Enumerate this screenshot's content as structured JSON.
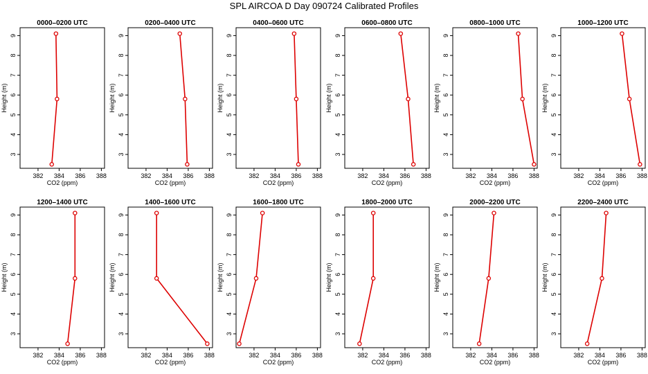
{
  "title": "SPL AIRCOA D  Day 090724  Calibrated Profiles",
  "colors": {
    "line": "#dd0000",
    "axis": "#000000"
  },
  "chart_data": [
    {
      "type": "line",
      "title": "0000–0200 UTC",
      "xlabel": "CO2 (ppm)",
      "ylabel": "Height (m)",
      "xlim": [
        380.3,
        388.3
      ],
      "ylim": [
        2.3,
        9.4
      ],
      "xticks": [
        382,
        384,
        386,
        388
      ],
      "yticks": [
        3,
        4,
        5,
        6,
        7,
        8,
        9
      ],
      "x": [
        383.3,
        383.8,
        383.7
      ],
      "y": [
        2.5,
        5.8,
        9.1
      ]
    },
    {
      "type": "line",
      "title": "0200–0400 UTC",
      "xlabel": "CO2 (ppm)",
      "ylabel": "Height (m)",
      "xlim": [
        380.3,
        388.3
      ],
      "ylim": [
        2.3,
        9.4
      ],
      "xticks": [
        382,
        384,
        386,
        388
      ],
      "yticks": [
        3,
        4,
        5,
        6,
        7,
        8,
        9
      ],
      "x": [
        385.9,
        385.7,
        385.2
      ],
      "y": [
        2.5,
        5.8,
        9.1
      ]
    },
    {
      "type": "line",
      "title": "0400–0600 UTC",
      "xlabel": "CO2 (ppm)",
      "ylabel": "Height (m)",
      "xlim": [
        380.3,
        388.3
      ],
      "ylim": [
        2.3,
        9.4
      ],
      "xticks": [
        382,
        384,
        386,
        388
      ],
      "yticks": [
        3,
        4,
        5,
        6,
        7,
        8,
        9
      ],
      "x": [
        386.2,
        386.0,
        385.8
      ],
      "y": [
        2.5,
        5.8,
        9.1
      ]
    },
    {
      "type": "line",
      "title": "0600–0800 UTC",
      "xlabel": "CO2 (ppm)",
      "ylabel": "Height (m)",
      "xlim": [
        380.3,
        388.3
      ],
      "ylim": [
        2.3,
        9.4
      ],
      "xticks": [
        382,
        384,
        386,
        388
      ],
      "yticks": [
        3,
        4,
        5,
        6,
        7,
        8,
        9
      ],
      "x": [
        386.8,
        386.3,
        385.6
      ],
      "y": [
        2.5,
        5.8,
        9.1
      ]
    },
    {
      "type": "line",
      "title": "0800–1000 UTC",
      "xlabel": "CO2 (ppm)",
      "ylabel": "Height (m)",
      "xlim": [
        380.3,
        388.3
      ],
      "ylim": [
        2.3,
        9.4
      ],
      "xticks": [
        382,
        384,
        386,
        388
      ],
      "yticks": [
        3,
        4,
        5,
        6,
        7,
        8,
        9
      ],
      "x": [
        388.0,
        386.9,
        386.5
      ],
      "y": [
        2.5,
        5.8,
        9.1
      ]
    },
    {
      "type": "line",
      "title": "1000–1200 UTC",
      "xlabel": "CO2 (ppm)",
      "ylabel": "Height (m)",
      "xlim": [
        380.3,
        388.3
      ],
      "ylim": [
        2.3,
        9.4
      ],
      "xticks": [
        382,
        384,
        386,
        388
      ],
      "yticks": [
        3,
        4,
        5,
        6,
        7,
        8,
        9
      ],
      "x": [
        387.8,
        386.8,
        386.1
      ],
      "y": [
        2.5,
        5.8,
        9.1
      ]
    },
    {
      "type": "line",
      "title": "1200–1400 UTC",
      "xlabel": "CO2 (ppm)",
      "ylabel": "Height (m)",
      "xlim": [
        380.3,
        388.3
      ],
      "ylim": [
        2.3,
        9.4
      ],
      "xticks": [
        382,
        384,
        386,
        388
      ],
      "yticks": [
        3,
        4,
        5,
        6,
        7,
        8,
        9
      ],
      "x": [
        384.8,
        385.5,
        385.5
      ],
      "y": [
        2.5,
        5.8,
        9.1
      ]
    },
    {
      "type": "line",
      "title": "1400–1600 UTC",
      "xlabel": "CO2 (ppm)",
      "ylabel": "Height (m)",
      "xlim": [
        380.3,
        388.3
      ],
      "ylim": [
        2.3,
        9.4
      ],
      "xticks": [
        382,
        384,
        386,
        388
      ],
      "yticks": [
        3,
        4,
        5,
        6,
        7,
        8,
        9
      ],
      "x": [
        387.8,
        383.0,
        383.0
      ],
      "y": [
        2.5,
        5.8,
        9.1
      ]
    },
    {
      "type": "line",
      "title": "1600–1800 UTC",
      "xlabel": "CO2 (ppm)",
      "ylabel": "Height (m)",
      "xlim": [
        380.3,
        388.3
      ],
      "ylim": [
        2.3,
        9.4
      ],
      "xticks": [
        382,
        384,
        386,
        388
      ],
      "yticks": [
        3,
        4,
        5,
        6,
        7,
        8,
        9
      ],
      "x": [
        380.6,
        382.2,
        382.8
      ],
      "y": [
        2.5,
        5.8,
        9.1
      ]
    },
    {
      "type": "line",
      "title": "1800–2000 UTC",
      "xlabel": "CO2 (ppm)",
      "ylabel": "Height (m)",
      "xlim": [
        380.3,
        388.3
      ],
      "ylim": [
        2.3,
        9.4
      ],
      "xticks": [
        382,
        384,
        386,
        388
      ],
      "yticks": [
        3,
        4,
        5,
        6,
        7,
        8,
        9
      ],
      "x": [
        381.7,
        383.0,
        383.0
      ],
      "y": [
        2.5,
        5.8,
        9.1
      ]
    },
    {
      "type": "line",
      "title": "2000–2200 UTC",
      "xlabel": "CO2 (ppm)",
      "ylabel": "Height (m)",
      "xlim": [
        380.3,
        388.3
      ],
      "ylim": [
        2.3,
        9.4
      ],
      "xticks": [
        382,
        384,
        386,
        388
      ],
      "yticks": [
        3,
        4,
        5,
        6,
        7,
        8,
        9
      ],
      "x": [
        382.8,
        383.7,
        384.2
      ],
      "y": [
        2.5,
        5.8,
        9.1
      ]
    },
    {
      "type": "line",
      "title": "2200–2400 UTC",
      "xlabel": "CO2 (ppm)",
      "ylabel": "Height (m)",
      "xlim": [
        380.3,
        388.3
      ],
      "ylim": [
        2.3,
        9.4
      ],
      "xticks": [
        382,
        384,
        386,
        388
      ],
      "yticks": [
        3,
        4,
        5,
        6,
        7,
        8,
        9
      ],
      "x": [
        382.8,
        384.2,
        384.6
      ],
      "y": [
        2.5,
        5.8,
        9.1
      ]
    }
  ]
}
